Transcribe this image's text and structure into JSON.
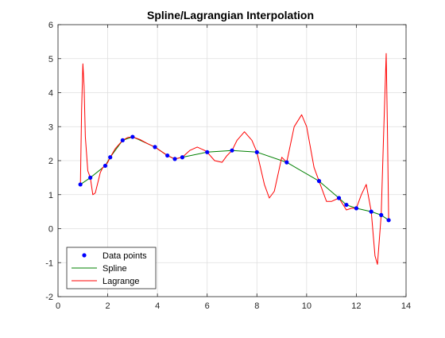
{
  "chart_data": {
    "type": "line",
    "title": "Spline/Lagrangian Interpolation",
    "xlabel": "",
    "ylabel": "",
    "xlim": [
      0,
      14
    ],
    "ylim": [
      -2,
      6
    ],
    "xticks": [
      0,
      2,
      4,
      6,
      8,
      10,
      12,
      14
    ],
    "yticks": [
      -2,
      -1,
      0,
      1,
      2,
      3,
      4,
      5,
      6
    ],
    "grid": true,
    "legend_position": "bottom-left",
    "series": [
      {
        "name": "Data points",
        "style": "markers",
        "color": "#0000ff",
        "x": [
          0.9,
          1.3,
          1.9,
          2.1,
          2.6,
          3.0,
          3.9,
          4.4,
          4.7,
          5.0,
          6.0,
          7.0,
          8.0,
          9.2,
          10.5,
          11.3,
          11.6,
          12.0,
          12.6,
          13.0,
          13.3
        ],
        "y": [
          1.3,
          1.5,
          1.85,
          2.1,
          2.6,
          2.7,
          2.4,
          2.15,
          2.05,
          2.1,
          2.25,
          2.3,
          2.25,
          1.95,
          1.4,
          0.9,
          0.7,
          0.6,
          0.5,
          0.4,
          0.25
        ]
      },
      {
        "name": "Spline",
        "style": "line",
        "color": "#008000",
        "x": [
          0.9,
          1.3,
          1.9,
          2.1,
          2.6,
          3.0,
          3.9,
          4.4,
          4.7,
          5.0,
          6.0,
          7.0,
          8.0,
          9.2,
          10.5,
          11.3,
          11.6,
          12.0,
          12.6,
          13.0,
          13.3
        ],
        "y": [
          1.3,
          1.5,
          1.85,
          2.1,
          2.6,
          2.7,
          2.4,
          2.15,
          2.05,
          2.1,
          2.25,
          2.3,
          2.25,
          1.95,
          1.4,
          0.9,
          0.7,
          0.6,
          0.5,
          0.4,
          0.25
        ]
      },
      {
        "name": "Lagrange",
        "style": "line",
        "color": "#ff0000",
        "x": [
          0.9,
          0.95,
          1.0,
          1.05,
          1.1,
          1.2,
          1.3,
          1.4,
          1.5,
          1.6,
          1.7,
          1.8,
          1.9,
          2.0,
          2.1,
          2.3,
          2.6,
          2.8,
          3.0,
          3.3,
          3.6,
          3.9,
          4.2,
          4.4,
          4.7,
          5.0,
          5.3,
          5.6,
          5.9,
          6.0,
          6.3,
          6.6,
          6.8,
          7.0,
          7.2,
          7.5,
          7.8,
          8.0,
          8.3,
          8.5,
          8.7,
          9.0,
          9.2,
          9.5,
          9.8,
          10.0,
          10.3,
          10.5,
          10.8,
          11.0,
          11.3,
          11.6,
          11.8,
          12.0,
          12.2,
          12.4,
          12.6,
          12.75,
          12.85,
          13.0,
          13.1,
          13.2,
          13.25,
          13.3
        ],
        "y": [
          1.3,
          3.5,
          4.85,
          4.2,
          2.7,
          1.7,
          1.5,
          1.0,
          1.05,
          1.35,
          1.65,
          1.8,
          1.85,
          1.95,
          2.1,
          2.35,
          2.6,
          2.68,
          2.7,
          2.62,
          2.5,
          2.4,
          2.25,
          2.15,
          2.05,
          2.1,
          2.3,
          2.4,
          2.3,
          2.25,
          2.0,
          1.95,
          2.15,
          2.3,
          2.6,
          2.85,
          2.6,
          2.25,
          1.3,
          0.9,
          1.1,
          2.1,
          1.95,
          3.0,
          3.35,
          3.0,
          1.8,
          1.4,
          0.8,
          0.8,
          0.9,
          0.55,
          0.6,
          0.6,
          1.0,
          1.3,
          0.5,
          -0.8,
          -1.05,
          0.4,
          2.8,
          5.15,
          3.0,
          0.25
        ]
      }
    ]
  }
}
